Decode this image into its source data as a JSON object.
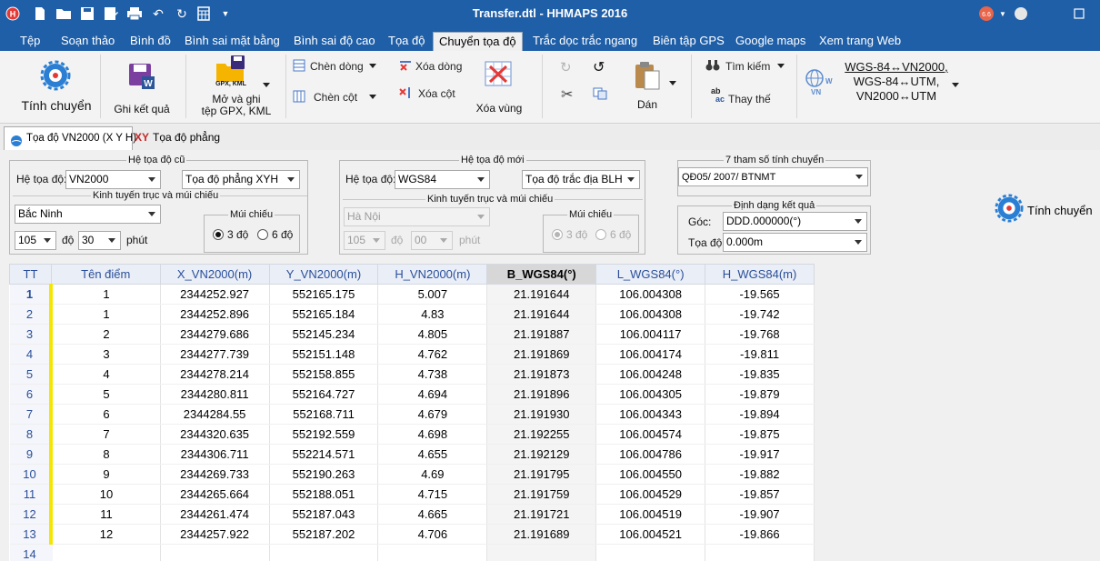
{
  "app": {
    "title": "Transfer.dtl - HHMAPS  2016",
    "brand_color": "#1f5fa8",
    "quick_access_icons": [
      "app-logo-icon",
      "new-file-icon",
      "open-folder-icon",
      "save-icon",
      "save-as-icon",
      "print-icon",
      "undo-icon",
      "redo-icon",
      "calculator-icon",
      "customize-dropdown-icon"
    ]
  },
  "menu": {
    "tabs": [
      "Tệp",
      "Soạn thảo",
      "Bình đồ",
      "Bình sai mặt bằng",
      "Bình sai độ cao",
      "Tọa độ",
      "Chuyển tọa độ",
      "Trắc dọc trắc ngang",
      "Biên tập GPS",
      "Google maps",
      "Xem trang Web"
    ],
    "active": "Chuyển tọa độ"
  },
  "ribbon": {
    "tinh_chuyen": "Tính chuyển",
    "ghi_ket_qua": "Ghi kết quả",
    "gpx_badge": "GPX, KML",
    "mo_va_ghi_1": "Mở và ghi",
    "mo_va_ghi_2": "tệp GPX, KML",
    "chen_dong": "Chèn dòng",
    "chen_cot": "Chèn cột",
    "xoa_dong": "Xóa dòng",
    "xoa_cot": "Xóa cột",
    "xoa_vung": "Xóa vùng",
    "dan": "Dán",
    "tim_kiem": "Tìm kiếm",
    "thay_the": "Thay thế",
    "thay_the_icon_text": "ab",
    "thay_the_icon_text2": "ac",
    "conv_1": "WGS-84↔VN2000,",
    "conv_2": "WGS-84↔UTM,",
    "conv_3": "VN2000↔UTM"
  },
  "doctabs": {
    "tab1": "Tọa độ VN2000 (X Y H)",
    "tab2_icon": "XY",
    "tab2": "Tọa độ phẳng"
  },
  "old_system": {
    "title": "Hệ tọa độ cũ",
    "he_toa_do_label": "Hệ tọa độ:",
    "he_toa_do": "VN2000",
    "loai_toa_do": "Tọa độ phẳng XYH",
    "kinh_tuyen_title": "Kinh tuyến trục và múi chiếu",
    "province": "Bắc Ninh",
    "degree": "105",
    "degree_unit": "độ",
    "minute": "30",
    "minute_unit": "phút",
    "mui_chieu_title": "Múi chiếu",
    "zone3": "3 độ",
    "zone6": "6 độ"
  },
  "new_system": {
    "title": "Hệ tọa độ mới",
    "he_toa_do_label": "Hệ tọa độ:",
    "he_toa_do": "WGS84",
    "loai_toa_do": "Tọa độ trắc địa BLH",
    "kinh_tuyen_title": "Kinh tuyến trục và múi chiếu",
    "province": "Hà Nội",
    "degree": "105",
    "degree_unit": "độ",
    "minute": "00",
    "minute_unit": "phút",
    "mui_chieu_title": "Múi chiếu",
    "zone3": "3 độ",
    "zone6": "6 độ"
  },
  "params": {
    "title": "7 tham số tính chuyển",
    "value": "QĐ05/ 2007/ BTNMT"
  },
  "format": {
    "title": "Định dạng kết quả",
    "goc_label": "Góc:",
    "goc": "DDD.000000(°)",
    "toa_do_label": "Tọa độ:",
    "toa_do": "0.000m"
  },
  "tinh_chuyen_button": "Tính chuyển",
  "table": {
    "columns": [
      "TT",
      "Tên điểm",
      "X_VN2000(m)",
      "Y_VN2000(m)",
      "H_VN2000(m)",
      "B_WGS84(°)",
      "L_WGS84(°)",
      "H_WGS84(m)"
    ],
    "rows": [
      [
        "1",
        "1",
        "2344252.927",
        "552165.175",
        "5.007",
        "21.191644",
        "106.004308",
        "-19.565"
      ],
      [
        "2",
        "1",
        "2344252.896",
        "552165.184",
        "4.83",
        "21.191644",
        "106.004308",
        "-19.742"
      ],
      [
        "3",
        "2",
        "2344279.686",
        "552145.234",
        "4.805",
        "21.191887",
        "106.004117",
        "-19.768"
      ],
      [
        "4",
        "3",
        "2344277.739",
        "552151.148",
        "4.762",
        "21.191869",
        "106.004174",
        "-19.811"
      ],
      [
        "5",
        "4",
        "2344278.214",
        "552158.855",
        "4.738",
        "21.191873",
        "106.004248",
        "-19.835"
      ],
      [
        "6",
        "5",
        "2344280.811",
        "552164.727",
        "4.694",
        "21.191896",
        "106.004305",
        "-19.879"
      ],
      [
        "7",
        "6",
        "2344284.55",
        "552168.711",
        "4.679",
        "21.191930",
        "106.004343",
        "-19.894"
      ],
      [
        "8",
        "7",
        "2344320.635",
        "552192.559",
        "4.698",
        "21.192255",
        "106.004574",
        "-19.875"
      ],
      [
        "9",
        "8",
        "2344306.711",
        "552214.571",
        "4.655",
        "21.192129",
        "106.004786",
        "-19.917"
      ],
      [
        "10",
        "9",
        "2344269.733",
        "552190.263",
        "4.69",
        "21.191795",
        "106.004550",
        "-19.882"
      ],
      [
        "11",
        "10",
        "2344265.664",
        "552188.051",
        "4.715",
        "21.191759",
        "106.004529",
        "-19.857"
      ],
      [
        "12",
        "11",
        "2344261.474",
        "552187.043",
        "4.665",
        "21.191721",
        "106.004519",
        "-19.907"
      ],
      [
        "13",
        "12",
        "2344257.922",
        "552187.202",
        "4.706",
        "21.191689",
        "106.004521",
        "-19.866"
      ],
      [
        "14",
        "",
        "",
        "",
        "",
        "",
        "",
        ""
      ]
    ]
  }
}
